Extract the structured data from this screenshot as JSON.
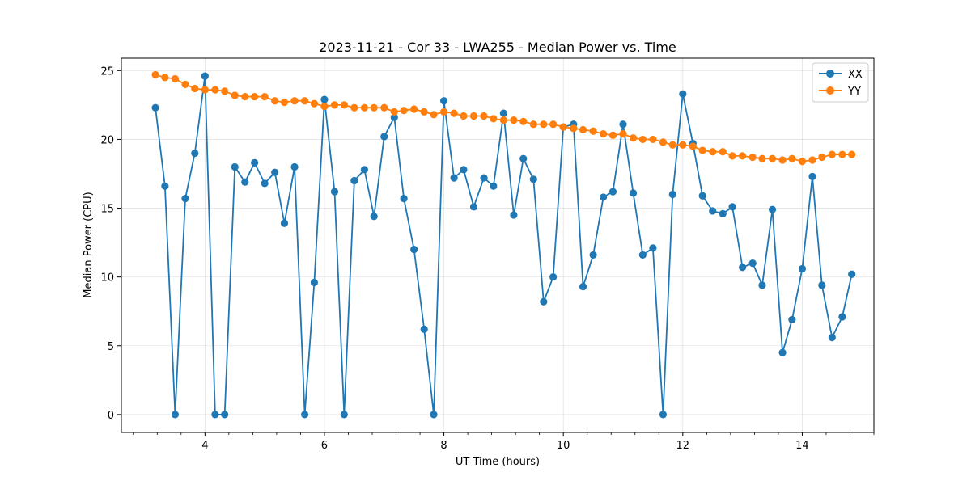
{
  "chart_data": {
    "type": "line",
    "title": "2023-11-21 - Cor 33 - LWA255 - Median Power vs. Time",
    "xlabel": "UT Time (hours)",
    "ylabel": "Median Power (CPU)",
    "xlim": [
      2.6,
      15.2
    ],
    "ylim": [
      -1.3,
      25.9
    ],
    "xticks": [
      4,
      6,
      8,
      10,
      12,
      14
    ],
    "xtick_labels": [
      "4",
      "6",
      "8",
      "10",
      "12",
      "14"
    ],
    "yticks": [
      0,
      5,
      10,
      15,
      20,
      25
    ],
    "ytick_labels": [
      "0",
      "5",
      "10",
      "15",
      "20",
      "25"
    ],
    "grid": true,
    "legend_position": "top-right",
    "x": [
      3.17,
      3.33,
      3.5,
      3.67,
      3.83,
      4.0,
      4.17,
      4.33,
      4.5,
      4.67,
      4.83,
      5.0,
      5.17,
      5.33,
      5.5,
      5.67,
      5.83,
      6.0,
      6.17,
      6.33,
      6.5,
      6.67,
      6.83,
      7.0,
      7.17,
      7.33,
      7.5,
      7.67,
      7.83,
      8.0,
      8.17,
      8.33,
      8.5,
      8.67,
      8.83,
      9.0,
      9.17,
      9.33,
      9.5,
      9.67,
      9.83,
      10.0,
      10.17,
      10.33,
      10.5,
      10.67,
      10.83,
      11.0,
      11.17,
      11.33,
      11.5,
      11.67,
      11.83,
      12.0,
      12.17,
      12.33,
      12.5,
      12.67,
      12.83,
      13.0,
      13.17,
      13.33,
      13.5,
      13.67,
      13.83,
      14.0,
      14.17,
      14.33,
      14.5,
      14.67,
      14.83
    ],
    "series": [
      {
        "name": "XX",
        "color": "#1f77b4",
        "values": [
          22.3,
          16.6,
          0.0,
          15.7,
          19.0,
          24.6,
          0.0,
          0.0,
          18.0,
          16.9,
          18.3,
          16.8,
          17.6,
          13.9,
          18.0,
          0.0,
          9.6,
          22.9,
          16.2,
          0.0,
          17.0,
          17.8,
          14.4,
          20.2,
          21.6,
          15.7,
          12.0,
          6.2,
          0.0,
          22.8,
          17.2,
          17.8,
          15.1,
          17.2,
          16.6,
          21.9,
          14.5,
          18.6,
          17.1,
          8.2,
          10.0,
          20.9,
          21.1,
          9.3,
          11.6,
          15.8,
          16.2,
          21.1,
          16.1,
          11.6,
          12.1,
          0.0,
          16.0,
          23.3,
          19.7,
          15.9,
          14.8,
          14.6,
          15.1,
          10.7,
          11.0,
          9.4,
          14.9,
          4.5,
          6.9,
          10.6,
          17.3,
          9.4,
          5.6,
          7.1,
          10.2
        ]
      },
      {
        "name": "YY",
        "color": "#ff7f0e",
        "values": [
          24.7,
          24.5,
          24.4,
          24.0,
          23.7,
          23.6,
          23.6,
          23.5,
          23.2,
          23.1,
          23.1,
          23.1,
          22.8,
          22.7,
          22.8,
          22.8,
          22.6,
          22.4,
          22.5,
          22.5,
          22.3,
          22.3,
          22.3,
          22.3,
          22.0,
          22.1,
          22.2,
          22.0,
          21.8,
          22.0,
          21.9,
          21.7,
          21.7,
          21.7,
          21.5,
          21.4,
          21.4,
          21.3,
          21.1,
          21.1,
          21.1,
          20.9,
          20.8,
          20.7,
          20.6,
          20.4,
          20.3,
          20.4,
          20.1,
          20.0,
          20.0,
          19.8,
          19.6,
          19.6,
          19.5,
          19.2,
          19.1,
          19.1,
          18.8,
          18.8,
          18.7,
          18.6,
          18.6,
          18.5,
          18.6,
          18.4,
          18.5,
          18.7,
          18.9,
          18.9,
          18.9
        ]
      }
    ]
  }
}
